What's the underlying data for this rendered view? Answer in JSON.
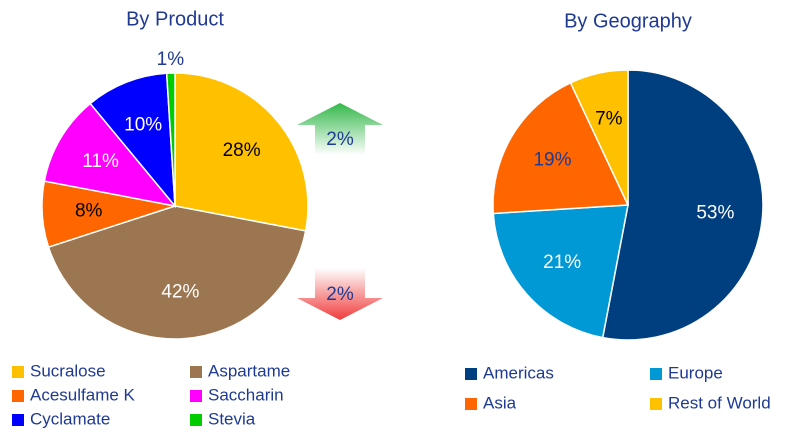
{
  "chart_data": [
    {
      "type": "pie",
      "title": "By Product",
      "categories": [
        "Sucralose",
        "Aspartame",
        "Acesulfame K",
        "Saccharin",
        "Cyclamate",
        "Stevia"
      ],
      "values": [
        28,
        42,
        8,
        11,
        10,
        1
      ],
      "value_labels": [
        "28%",
        "42%",
        "8%",
        "11%",
        "10%",
        "1%"
      ],
      "colors": [
        "#ffc000",
        "#9c7650",
        "#ff6600",
        "#ff00ff",
        "#0000ff",
        "#00cc00"
      ],
      "label_colors": [
        "#000000",
        "#ffffff",
        "#000000",
        "#ffffff",
        "#ffffff",
        "#1f3a93"
      ],
      "annotations": [
        {
          "text": "2%",
          "direction": "up",
          "color": "#33b84a"
        },
        {
          "text": "2%",
          "direction": "down",
          "color": "#f03c3c"
        }
      ]
    },
    {
      "type": "pie",
      "title": "By Geography",
      "categories": [
        "Americas",
        "Europe",
        "Asia",
        "Rest of World"
      ],
      "values": [
        53,
        21,
        19,
        7
      ],
      "value_labels": [
        "53%",
        "21%",
        "19%",
        "7%"
      ],
      "colors": [
        "#003f7f",
        "#0099d6",
        "#ff6600",
        "#ffc000"
      ],
      "label_colors": [
        "#ffffff",
        "#ffffff",
        "#1f3a93",
        "#000000"
      ]
    }
  ]
}
